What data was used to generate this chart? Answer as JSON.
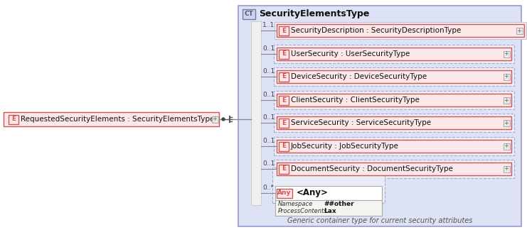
{
  "outer_bg": "#ffffff",
  "ct_label": "CT",
  "ct_title": "SecurityElementsType",
  "left_element_text": "RequestedSecurityElements : SecurityElementsType",
  "elements": [
    {
      "label": "E",
      "text": "SecurityDescription : SecurityDescriptionType",
      "multiplicity": "1..1",
      "dashed": false
    },
    {
      "label": "E",
      "text": "UserSecurity : UserSecurityType",
      "multiplicity": "0..1",
      "dashed": true
    },
    {
      "label": "E",
      "text": "DeviceSecurity : DeviceSecurityType",
      "multiplicity": "0..1",
      "dashed": true
    },
    {
      "label": "E",
      "text": "ClientSecurity : ClientSecurityType",
      "multiplicity": "0..1",
      "dashed": true
    },
    {
      "label": "E",
      "text": "ServiceSecurity : ServiceSecurityType",
      "multiplicity": "0..1",
      "dashed": true
    },
    {
      "label": "E",
      "text": "JobSecurity : JobSecurityType",
      "multiplicity": "0..1",
      "dashed": true
    },
    {
      "label": "E",
      "text": "DocumentSecurity : DocumentSecurityType",
      "multiplicity": "0..1",
      "dashed": true
    }
  ],
  "any_element": {
    "label": "Any",
    "text": "<Any>",
    "multiplicity": "0..*",
    "namespace": "##other",
    "process_contents": "Lax"
  },
  "footer": "Generic container type for current security attributes",
  "elem_fill": "#fce8e8",
  "elem_border": "#cc5555",
  "main_fill": "#dde3f5",
  "main_border": "#9999cc",
  "ct_fill": "#ccd5ee",
  "ct_border": "#7777aa",
  "bar_fill": "#f0f0f0",
  "bar_border": "#cccccc",
  "dash_fill": "#eaedf7",
  "dash_border": "#aaaacc",
  "plus_fill": "#e8e8e8",
  "plus_border": "#aaaaaa",
  "conn_color": "#888888",
  "any_fill": "#ffffff",
  "any_border": "#aaaaaa",
  "any_info_fill": "#f5f5f0",
  "footer_color": "#555555",
  "mult_color": "#444444"
}
